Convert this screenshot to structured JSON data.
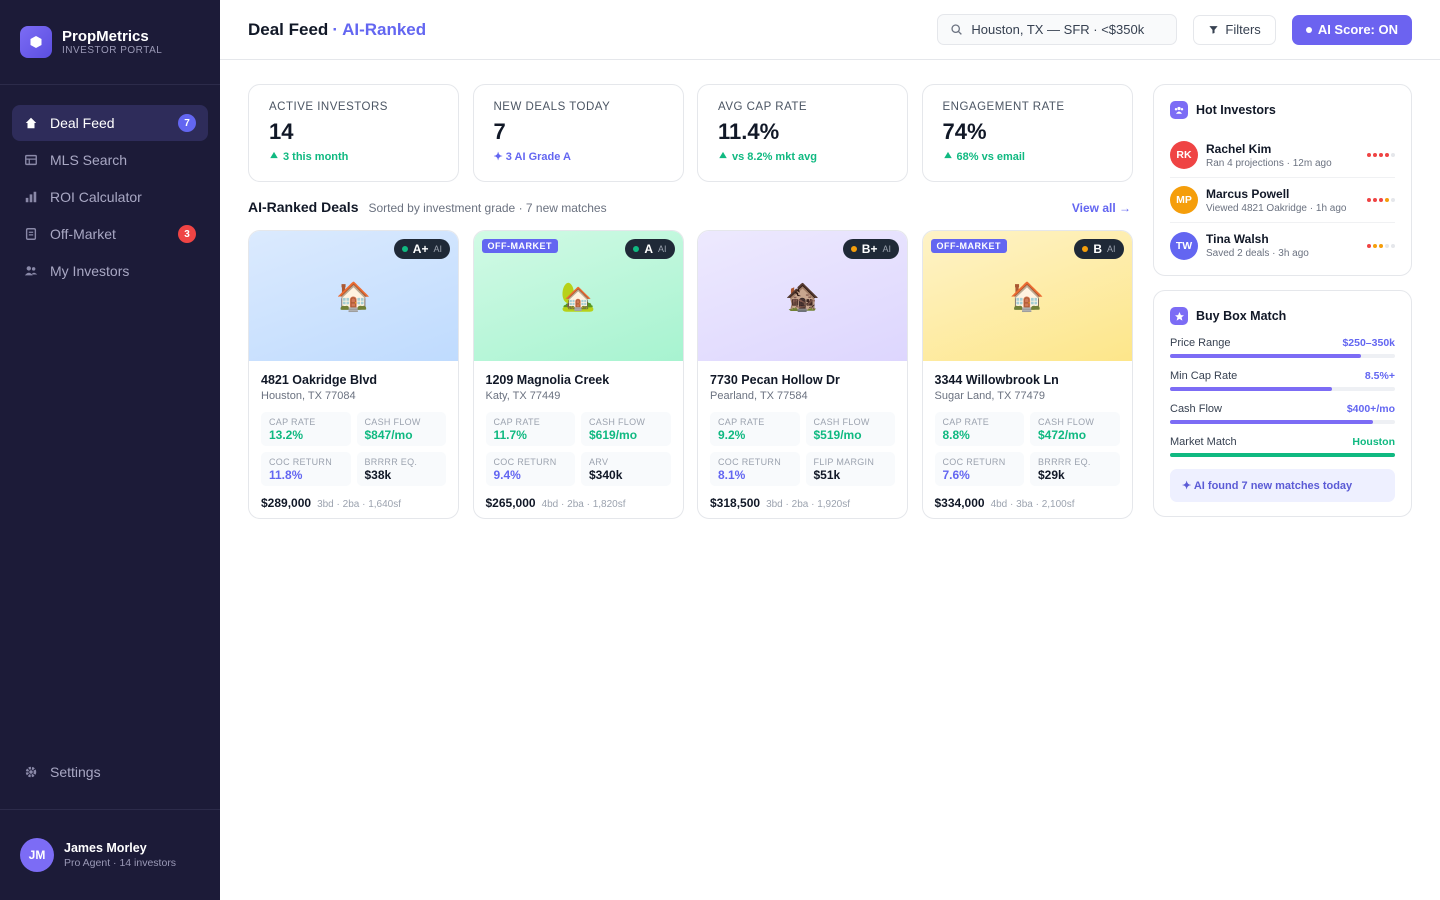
{
  "sidebar": {
    "brand": {
      "name": "PropMetrics",
      "tagline": "INVESTOR PORTAL"
    },
    "nav": [
      {
        "label": "Deal Feed",
        "badge": "7"
      },
      {
        "label": "MLS Search"
      },
      {
        "label": "ROI Calculator"
      },
      {
        "label": "Off-Market",
        "badge": "3"
      },
      {
        "label": "My Investors"
      }
    ],
    "settings": "Settings",
    "user": {
      "initials": "JM",
      "name": "James Morley",
      "role": "Pro Agent · 14 investors"
    }
  },
  "header": {
    "title": "Deal Feed",
    "title_accent": "· AI-Ranked",
    "search": "Houston, TX — SFR · <$350k",
    "filters": "Filters",
    "ai_toggle": "AI Score: ON"
  },
  "stats": [
    {
      "label": "ACTIVE INVESTORS",
      "value": "14",
      "delta": "3 this month"
    },
    {
      "label": "NEW DEALS TODAY",
      "value": "7",
      "delta": "✦ 3 AI Grade A"
    },
    {
      "label": "AVG CAP RATE",
      "value": "11.4%",
      "delta": "vs 8.2% mkt avg"
    },
    {
      "label": "ENGAGEMENT RATE",
      "value": "74%",
      "delta": "68% vs email"
    }
  ],
  "deals": {
    "title": "AI-Ranked Deals",
    "subtitle": "Sorted by investment grade · 7 new matches",
    "view_all": "View all →",
    "items": [
      {
        "icon": "🏠",
        "grade": "A+",
        "ai": "AI",
        "address": "4821 Oakridge Blvd",
        "city": "Houston, TX 77084",
        "metrics": [
          {
            "label": "CAP RATE",
            "value": "13.2%"
          },
          {
            "label": "CASH FLOW",
            "value": "$847/mo"
          },
          {
            "label": "COC RETURN",
            "value": "11.8%"
          },
          {
            "label": "BRRRR EQ.",
            "value": "$38k"
          }
        ],
        "price": "$289,000",
        "specs": "3bd · 2ba · 1,640sf"
      },
      {
        "icon": "🏡",
        "tag": "OFF-MARKET",
        "grade": "A",
        "ai": "AI",
        "address": "1209 Magnolia Creek",
        "city": "Katy, TX 77449",
        "metrics": [
          {
            "label": "CAP RATE",
            "value": "11.7%"
          },
          {
            "label": "CASH FLOW",
            "value": "$619/mo"
          },
          {
            "label": "COC RETURN",
            "value": "9.4%"
          },
          {
            "label": "ARV",
            "value": "$340k"
          }
        ],
        "price": "$265,000",
        "specs": "4bd · 2ba · 1,820sf"
      },
      {
        "icon": "🏚️",
        "grade": "B+",
        "ai": "AI",
        "address": "7730 Pecan Hollow Dr",
        "city": "Pearland, TX 77584",
        "metrics": [
          {
            "label": "CAP RATE",
            "value": "9.2%"
          },
          {
            "label": "CASH FLOW",
            "value": "$519/mo"
          },
          {
            "label": "COC RETURN",
            "value": "8.1%"
          },
          {
            "label": "FLIP MARGIN",
            "value": "$51k"
          }
        ],
        "price": "$318,500",
        "specs": "3bd · 2ba · 1,920sf"
      },
      {
        "icon": "🏠",
        "tag": "OFF-MARKET",
        "grade": "B",
        "ai": "AI",
        "address": "3344 Willowbrook Ln",
        "city": "Sugar Land, TX 77479",
        "metrics": [
          {
            "label": "CAP RATE",
            "value": "8.8%"
          },
          {
            "label": "CASH FLOW",
            "value": "$472/mo"
          },
          {
            "label": "COC RETURN",
            "value": "7.6%"
          },
          {
            "label": "BRRRR EQ.",
            "value": "$29k"
          }
        ],
        "price": "$334,000",
        "specs": "4bd · 3ba · 2,100sf"
      }
    ]
  },
  "hot_investors": {
    "title": "Hot Investors",
    "items": [
      {
        "initials": "RK",
        "name": "Rachel Kim",
        "detail": "Ran 4 projections · 12m ago"
      },
      {
        "initials": "MP",
        "name": "Marcus Powell",
        "detail": "Viewed 4821 Oakridge · 1h ago"
      },
      {
        "initials": "TW",
        "name": "Tina Walsh",
        "detail": "Saved 2 deals · 3h ago"
      }
    ]
  },
  "buy_box": {
    "title": "Buy Box Match",
    "rows": [
      {
        "label": "Price Range",
        "value": "$250–350k"
      },
      {
        "label": "Min Cap Rate",
        "value": "8.5%+"
      },
      {
        "label": "Cash Flow",
        "value": "$400+/mo"
      },
      {
        "label": "Market Match",
        "value": "Houston"
      }
    ],
    "note": "✦ AI found 7 new matches today"
  }
}
